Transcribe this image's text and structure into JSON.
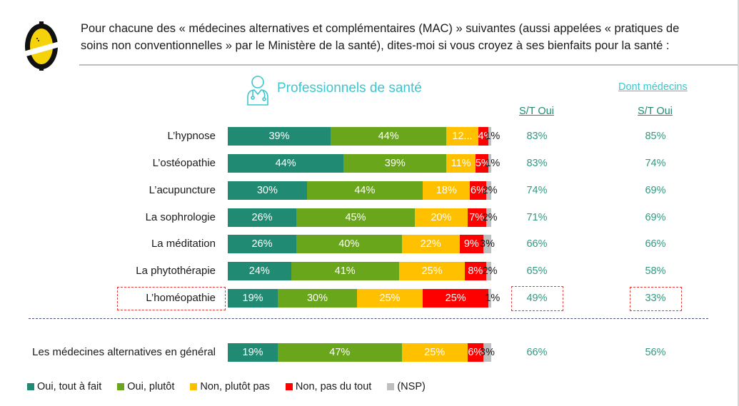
{
  "header": {
    "question_lines": [
      "Pour chacune des « médecines alternatives et complémentaires (MAC) » suivantes (aussi appelées « pratiques de",
      "soins non conventionnelles » par le Ministère de la santé), dites-moi si vous croyez à ses bienfaits pour la santé :"
    ],
    "logo_icon": "lemon-logo-icon"
  },
  "panel": {
    "title": "Professionnels de santé",
    "icon": "doctor-icon",
    "dont_medecins": "Dont médecins",
    "col1_header": "S/T Oui",
    "col2_header": "S/T Oui"
  },
  "colors": {
    "oui_tout_a_fait": "#218a72",
    "oui_plutot": "#6aa61c",
    "non_plutot_pas": "#ffc000",
    "non_pas_du_tout": "#ff0000",
    "nsp": "#bfbfbf",
    "accent": "#3cc6cf"
  },
  "chart_data": {
    "type": "bar",
    "orientation": "horizontal",
    "stacked": true,
    "title": "Professionnels de santé",
    "categories": [
      "L’hypnose",
      "L’ostéopathie",
      "L’acupuncture",
      "La sophrologie",
      "La méditation",
      "La phytothérapie",
      "L’homéopathie",
      "Les médecines alternatives en général"
    ],
    "series": [
      {
        "name": "Oui, tout à fait",
        "values": [
          39,
          44,
          30,
          26,
          26,
          24,
          19,
          19
        ]
      },
      {
        "name": "Oui, plutôt",
        "values": [
          44,
          39,
          44,
          45,
          40,
          41,
          30,
          47
        ]
      },
      {
        "name": "Non, plutôt pas",
        "values": [
          12,
          11,
          18,
          20,
          22,
          25,
          25,
          25
        ]
      },
      {
        "name": "Non, pas du tout",
        "values": [
          4,
          5,
          6,
          7,
          9,
          8,
          25,
          6
        ]
      },
      {
        "name": "(NSP)",
        "values": [
          1,
          1,
          2,
          2,
          3,
          2,
          1,
          3
        ]
      }
    ],
    "data_labels": [
      [
        "39%",
        "44%",
        "12...",
        "4%",
        "1%"
      ],
      [
        "44%",
        "39%",
        "11%",
        "5%",
        "1%"
      ],
      [
        "30%",
        "44%",
        "18%",
        "6%",
        "2%"
      ],
      [
        "26%",
        "45%",
        "20%",
        "7%",
        "2%"
      ],
      [
        "26%",
        "40%",
        "22%",
        "9%",
        "3%"
      ],
      [
        "24%",
        "41%",
        "25%",
        "8%",
        "2%"
      ],
      [
        "19%",
        "30%",
        "25%",
        "25%",
        "1%"
      ],
      [
        "19%",
        "47%",
        "25%",
        "6%",
        "3%"
      ]
    ],
    "st_oui_professionnels": [
      "83%",
      "83%",
      "74%",
      "71%",
      "66%",
      "65%",
      "49%",
      "66%"
    ],
    "st_oui_medecins": [
      "85%",
      "74%",
      "69%",
      "69%",
      "66%",
      "58%",
      "33%",
      "56%"
    ],
    "highlighted_category": "L’homéopathie",
    "legend": [
      "Oui, tout à fait",
      "Oui, plutôt",
      "Non, plutôt pas",
      "Non, pas du tout",
      "(NSP)"
    ],
    "legend_position": "bottom-left",
    "xlim": [
      0,
      100
    ],
    "grid": false
  }
}
